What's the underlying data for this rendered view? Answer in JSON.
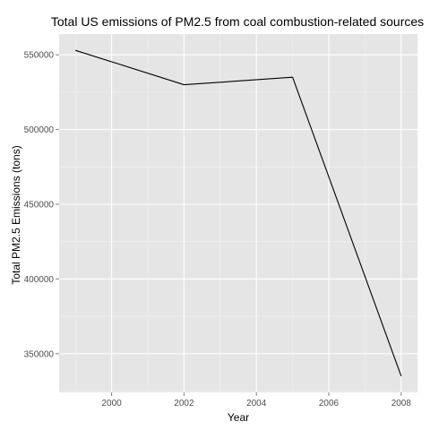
{
  "chart_data": {
    "type": "line",
    "title": "Total US emissions of PM2.5 from coal combustion-related sources",
    "xlabel": "Year",
    "ylabel": "Total PM2.5 Emissions (tons)",
    "x": [
      1999,
      2002,
      2005,
      2008
    ],
    "series": [
      {
        "values": [
          553000,
          530000,
          535000,
          335000
        ]
      }
    ],
    "xlim": [
      1998.55,
      2008.45
    ],
    "ylim": [
      324100,
      563900
    ],
    "x_ticks": [
      2000,
      2002,
      2004,
      2006,
      2008
    ],
    "x_tick_labels": [
      "2000",
      "2002",
      "2004",
      "2006",
      "2008"
    ],
    "y_ticks": [
      350000,
      400000,
      450000,
      500000,
      550000
    ],
    "y_tick_labels": [
      "350000",
      "400000",
      "450000",
      "500000",
      "550000"
    ],
    "grid": true,
    "legend": "none",
    "colors": {
      "panel": "#e5e5e5",
      "grid_major": "#ffffff",
      "grid_minor": "#f2f2f2",
      "line": "#000000",
      "tick_text": "#4d4d4d"
    }
  }
}
